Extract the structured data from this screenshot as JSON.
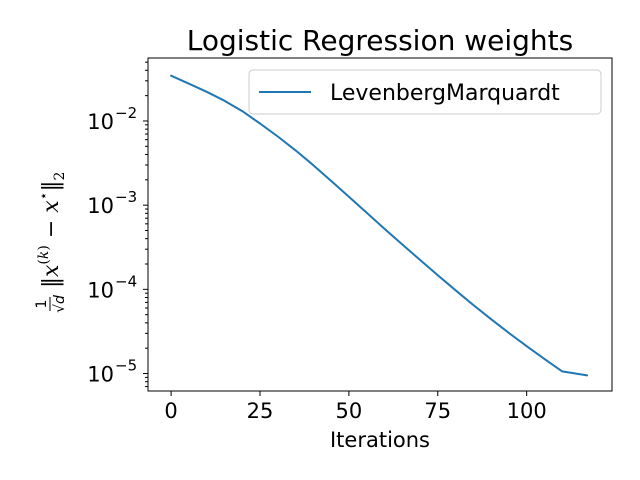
{
  "chart_data": {
    "type": "line",
    "title": "Logistic Regression weights",
    "xlabel": "Iterations",
    "ylabel": "1/√d ‖x^(k) − x*‖₂",
    "yscale": "log",
    "xlim": [
      -6.5,
      124
    ],
    "ylim": [
      6.2e-06,
      0.056
    ],
    "x_ticks": [
      0,
      25,
      50,
      75,
      100
    ],
    "x_tick_labels": [
      "0",
      "25",
      "50",
      "75",
      "100"
    ],
    "y_ticks": [
      1e-05,
      0.0001,
      0.001,
      0.01
    ],
    "y_tick_labels": [
      "10",
      "10",
      "10",
      "10"
    ],
    "y_tick_exponents": [
      "−5",
      "−4",
      "−3",
      "−2"
    ],
    "grid": false,
    "legend_position": "top-right",
    "series": [
      {
        "name": "LevenbergMarquardt",
        "color": "#1f77b4",
        "x": [
          0,
          5,
          10,
          15,
          20,
          25,
          30,
          35,
          40,
          45,
          50,
          55,
          60,
          65,
          70,
          75,
          80,
          85,
          90,
          95,
          100,
          105,
          110,
          117
        ],
        "y": [
          0.0345,
          0.0277,
          0.0222,
          0.0174,
          0.0131,
          0.00933,
          0.00654,
          0.00447,
          0.00298,
          0.00194,
          0.00126,
          0.000812,
          0.000526,
          0.000342,
          0.000224,
          0.000147,
          9.73e-05,
          6.52e-05,
          4.42e-05,
          3.03e-05,
          2.11e-05,
          1.49e-05,
          1.06e-05,
          9.5e-06
        ]
      }
    ]
  }
}
